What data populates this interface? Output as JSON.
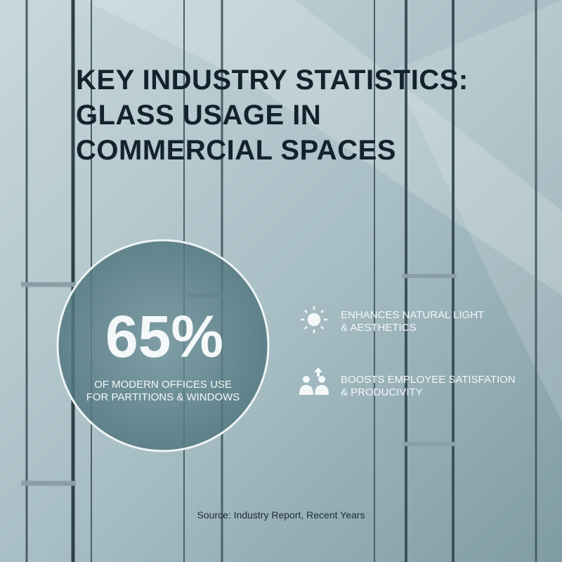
{
  "header": {
    "title_lines": [
      "KEY INDUSTRY STATISTICS:",
      "GLASS USAGE IN",
      "COMMERCIAL SPACES"
    ]
  },
  "stat": {
    "figure": "65%",
    "caption_lines": [
      "OF MODERN OFFICES USE",
      "FOR PARTITIONS & WINDOWS"
    ]
  },
  "benefits": [
    {
      "lines": [
        "ENHANCES NATURAL LIGHT",
        "& AESTHETICS"
      ]
    },
    {
      "lines": [
        "BOOSTS EMPLOYEE SATISFATION",
        "& PRODUCIVITY"
      ]
    }
  ],
  "source": "Source: Industry Report, Recent Years"
}
